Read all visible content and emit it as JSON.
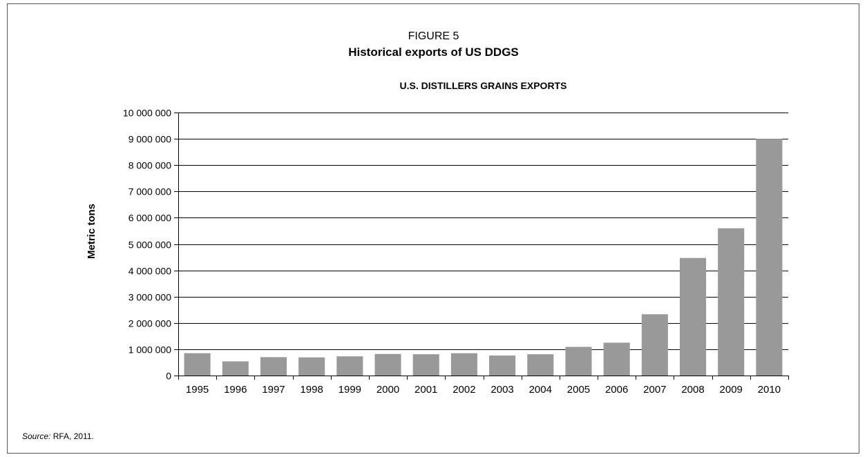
{
  "figure": {
    "label": "FIGURE 5",
    "title": "Historical exports of US DDGS",
    "source_label": "Source:",
    "source_text": " RFA, 2011."
  },
  "chart_data": {
    "type": "bar",
    "title": "U.S. DISTILLERS GRAINS EXPORTS",
    "xlabel": "",
    "ylabel": "Metric tons",
    "categories": [
      "1995",
      "1996",
      "1997",
      "1998",
      "1999",
      "2000",
      "2001",
      "2002",
      "2003",
      "2004",
      "2005",
      "2006",
      "2007",
      "2008",
      "2009",
      "2010"
    ],
    "values": [
      850000,
      540000,
      700000,
      690000,
      730000,
      820000,
      810000,
      850000,
      760000,
      810000,
      1090000,
      1250000,
      2330000,
      4470000,
      5600000,
      9000000
    ],
    "ylim": [
      0,
      10000000
    ],
    "yticks": [
      0,
      1000000,
      2000000,
      3000000,
      4000000,
      5000000,
      6000000,
      7000000,
      8000000,
      9000000,
      10000000
    ],
    "ytick_labels": [
      "0",
      "1 000 000",
      "2 000 000",
      "3 000 000",
      "4 000 000",
      "5 000 000",
      "6 000 000",
      "7 000 000",
      "8 000 000",
      "9 000 000",
      "10 000 000"
    ],
    "grid": true,
    "legend": "none",
    "bar_color": "#999999"
  }
}
